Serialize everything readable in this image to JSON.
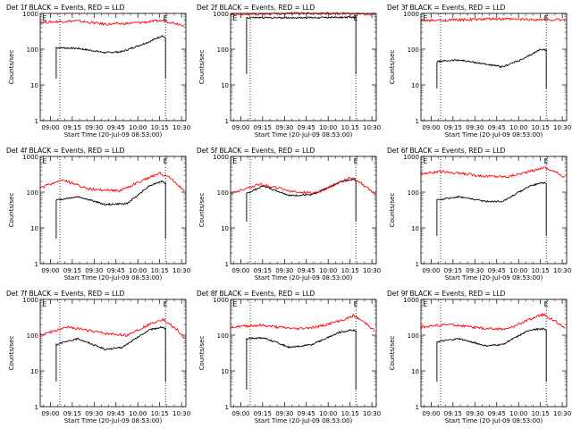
{
  "figure": {
    "background": "#ffffff",
    "event_color": "#000000",
    "lld_color": "#ff0000"
  },
  "chart_data": [
    {
      "type": "line",
      "title": "Det 1f BLACK = Events, RED = LLD",
      "xlabel": "Start Time (20-Jul-09 08:53:00)",
      "ylabel": "Counts/sec",
      "yscale": "log",
      "ylim": [
        1,
        1000
      ],
      "x_ticks": [
        "09:00",
        "09:15",
        "09:30",
        "09:45",
        "10:00",
        "10:15",
        "10:30"
      ],
      "y_ticks": [
        "1",
        "10",
        "100",
        "1000"
      ],
      "xlim_minutes": [
        0,
        100
      ],
      "marker_lines_minutes": [
        13.5,
        86
      ],
      "top_markers": [
        {
          "label": "E",
          "at_minutes": 3
        },
        {
          "label": "E",
          "at_minutes": 86
        }
      ],
      "series": [
        {
          "name": "Events",
          "color": "#000000",
          "kind": "events",
          "time_range_min": [
            11,
            86
          ],
          "edge_value": 15,
          "profile": [
            [
              0,
              110
            ],
            [
              0.2,
              105
            ],
            [
              0.45,
              80
            ],
            [
              0.6,
              85
            ],
            [
              0.85,
              160
            ],
            [
              0.97,
              240
            ],
            [
              1,
              200
            ]
          ]
        },
        {
          "name": "LLD",
          "color": "#ff0000",
          "kind": "lld",
          "time_range_min": [
            0,
            99
          ],
          "profile": [
            [
              0,
              560
            ],
            [
              0.25,
              620
            ],
            [
              0.45,
              500
            ],
            [
              0.6,
              520
            ],
            [
              0.85,
              630
            ],
            [
              1,
              470
            ]
          ]
        }
      ]
    },
    {
      "type": "line",
      "title": "Det 2f BLACK = Events, RED = LLD",
      "xlabel": "Start Time (20-Jul-09 08:53:00)",
      "ylabel": "Counts/sec",
      "yscale": "log",
      "ylim": [
        1,
        1000
      ],
      "x_ticks": [
        "09:00",
        "09:15",
        "09:30",
        "09:45",
        "10:00",
        "10:15",
        "10:30"
      ],
      "y_ticks": [
        "1",
        "10",
        "100",
        "1000"
      ],
      "xlim_minutes": [
        0,
        100
      ],
      "marker_lines_minutes": [
        13.5,
        86
      ],
      "top_markers": [
        {
          "label": "E",
          "at_minutes": 3
        },
        {
          "label": "E",
          "at_minutes": 86
        }
      ],
      "series": [
        {
          "name": "Events",
          "color": "#000000",
          "kind": "events",
          "time_range_min": [
            11,
            86
          ],
          "edge_value": 20,
          "profile": [
            [
              0,
              760
            ],
            [
              0.5,
              760
            ],
            [
              1,
              780
            ]
          ]
        },
        {
          "name": "LLD",
          "color": "#ff0000",
          "kind": "lld",
          "time_range_min": [
            0,
            99
          ],
          "profile": [
            [
              0,
              920
            ],
            [
              0.5,
              1020
            ],
            [
              1,
              960
            ]
          ]
        }
      ]
    },
    {
      "type": "line",
      "title": "Det 3f BLACK = Events, RED = LLD",
      "xlabel": "Start Time (20-Jul-09 08:53:00)",
      "ylabel": "Counts/sec",
      "yscale": "log",
      "ylim": [
        1,
        1000
      ],
      "x_ticks": [
        "09:00",
        "09:15",
        "09:30",
        "09:45",
        "10:00",
        "10:15",
        "10:30"
      ],
      "y_ticks": [
        "1",
        "10",
        "100",
        "1000"
      ],
      "xlim_minutes": [
        0,
        100
      ],
      "marker_lines_minutes": [
        13.5,
        86
      ],
      "top_markers": [
        {
          "label": "E",
          "at_minutes": 3
        },
        {
          "label": "E",
          "at_minutes": 86
        }
      ],
      "series": [
        {
          "name": "Events",
          "color": "#000000",
          "kind": "events",
          "time_range_min": [
            11,
            86
          ],
          "edge_value": 8,
          "profile": [
            [
              0,
              45
            ],
            [
              0.2,
              50
            ],
            [
              0.4,
              40
            ],
            [
              0.6,
              32
            ],
            [
              0.8,
              55
            ],
            [
              0.95,
              100
            ],
            [
              1,
              95
            ]
          ]
        },
        {
          "name": "LLD",
          "color": "#ff0000",
          "kind": "lld",
          "time_range_min": [
            0,
            99
          ],
          "profile": [
            [
              0,
              620
            ],
            [
              0.5,
              700
            ],
            [
              1,
              660
            ]
          ]
        }
      ]
    },
    {
      "type": "line",
      "title": "Det 4f BLACK = Events, RED = LLD",
      "xlabel": "Start Time (20-Jul-09 08:53:00)",
      "ylabel": "Counts/sec",
      "yscale": "log",
      "ylim": [
        1,
        1000
      ],
      "x_ticks": [
        "09:00",
        "09:15",
        "09:30",
        "09:45",
        "10:00",
        "10:15",
        "10:30"
      ],
      "y_ticks": [
        "1",
        "10",
        "100",
        "1000"
      ],
      "xlim_minutes": [
        0,
        100
      ],
      "marker_lines_minutes": [
        13.5,
        86
      ],
      "top_markers": [
        {
          "label": "E",
          "at_minutes": 3
        },
        {
          "label": "E",
          "at_minutes": 86
        }
      ],
      "series": [
        {
          "name": "Events",
          "color": "#000000",
          "kind": "events",
          "time_range_min": [
            11,
            86
          ],
          "edge_value": 5,
          "profile": [
            [
              0,
              60
            ],
            [
              0.2,
              75
            ],
            [
              0.45,
              45
            ],
            [
              0.65,
              48
            ],
            [
              0.85,
              150
            ],
            [
              0.96,
              200
            ],
            [
              1,
              180
            ]
          ]
        },
        {
          "name": "LLD",
          "color": "#ff0000",
          "kind": "lld",
          "time_range_min": [
            0,
            99
          ],
          "profile": [
            [
              0,
              130
            ],
            [
              0.15,
              220
            ],
            [
              0.35,
              120
            ],
            [
              0.55,
              110
            ],
            [
              0.75,
              250
            ],
            [
              0.83,
              340
            ],
            [
              0.9,
              250
            ],
            [
              1,
              110
            ]
          ]
        }
      ]
    },
    {
      "type": "line",
      "title": "Det 5f BLACK = Events, RED = LLD",
      "xlabel": "Start Time (20-Jul-09 08:53:00)",
      "ylabel": "Counts/sec",
      "yscale": "log",
      "ylim": [
        1,
        1000
      ],
      "x_ticks": [
        "09:00",
        "09:15",
        "09:30",
        "09:45",
        "10:00",
        "10:15",
        "10:30"
      ],
      "y_ticks": [
        "1",
        "10",
        "100",
        "1000"
      ],
      "xlim_minutes": [
        0,
        100
      ],
      "marker_lines_minutes": [
        13.5,
        86
      ],
      "top_markers": [
        {
          "label": "E",
          "at_minutes": 3
        },
        {
          "label": "E",
          "at_minutes": 86
        }
      ],
      "series": [
        {
          "name": "Events",
          "color": "#000000",
          "kind": "events",
          "time_range_min": [
            11,
            86
          ],
          "edge_value": 15,
          "profile": [
            [
              0,
              90
            ],
            [
              0.15,
              150
            ],
            [
              0.4,
              80
            ],
            [
              0.6,
              85
            ],
            [
              0.85,
              190
            ],
            [
              0.97,
              230
            ],
            [
              1,
              210
            ]
          ]
        },
        {
          "name": "LLD",
          "color": "#ff0000",
          "kind": "lld",
          "time_range_min": [
            0,
            99
          ],
          "profile": [
            [
              0,
              90
            ],
            [
              0.2,
              170
            ],
            [
              0.45,
              100
            ],
            [
              0.6,
              95
            ],
            [
              0.8,
              230
            ],
            [
              0.85,
              260
            ],
            [
              0.95,
              130
            ],
            [
              1,
              90
            ]
          ]
        }
      ]
    },
    {
      "type": "line",
      "title": "Det 6f BLACK = Events, RED = LLD",
      "xlabel": "Start Time (20-Jul-09 08:53:00)",
      "ylabel": "Counts/sec",
      "yscale": "log",
      "ylim": [
        1,
        1000
      ],
      "x_ticks": [
        "09:00",
        "09:15",
        "09:30",
        "09:45",
        "10:00",
        "10:15",
        "10:30"
      ],
      "y_ticks": [
        "1",
        "10",
        "100",
        "1000"
      ],
      "xlim_minutes": [
        0,
        100
      ],
      "marker_lines_minutes": [
        13.5,
        86
      ],
      "top_markers": [
        {
          "label": "E",
          "at_minutes": 3
        },
        {
          "label": "E",
          "at_minutes": 86
        }
      ],
      "series": [
        {
          "name": "Events",
          "color": "#000000",
          "kind": "events",
          "time_range_min": [
            11,
            86
          ],
          "edge_value": 6,
          "profile": [
            [
              0,
              60
            ],
            [
              0.2,
              75
            ],
            [
              0.45,
              55
            ],
            [
              0.6,
              55
            ],
            [
              0.85,
              150
            ],
            [
              0.97,
              185
            ],
            [
              1,
              180
            ]
          ]
        },
        {
          "name": "LLD",
          "color": "#ff0000",
          "kind": "lld",
          "time_range_min": [
            0,
            99
          ],
          "profile": [
            [
              0,
              330
            ],
            [
              0.15,
              380
            ],
            [
              0.45,
              280
            ],
            [
              0.6,
              270
            ],
            [
              0.8,
              420
            ],
            [
              0.85,
              500
            ],
            [
              0.95,
              340
            ],
            [
              1,
              260
            ]
          ]
        }
      ]
    },
    {
      "type": "line",
      "title": "Det 7f BLACK = Events, RED = LLD",
      "xlabel": "Start Time (20-Jul-09 08:53:00)",
      "ylabel": "Counts/sec",
      "yscale": "log",
      "ylim": [
        1,
        1000
      ],
      "x_ticks": [
        "09:00",
        "09:15",
        "09:30",
        "09:45",
        "10:00",
        "10:15",
        "10:30"
      ],
      "y_ticks": [
        "1",
        "10",
        "100",
        "1000"
      ],
      "xlim_minutes": [
        0,
        100
      ],
      "marker_lines_minutes": [
        13.5,
        86
      ],
      "top_markers": [
        {
          "label": "E",
          "at_minutes": 3
        },
        {
          "label": "E",
          "at_minutes": 86
        }
      ],
      "series": [
        {
          "name": "Events",
          "color": "#000000",
          "kind": "events",
          "time_range_min": [
            11,
            86
          ],
          "edge_value": 5,
          "profile": [
            [
              0,
              55
            ],
            [
              0.2,
              80
            ],
            [
              0.45,
              40
            ],
            [
              0.6,
              45
            ],
            [
              0.85,
              140
            ],
            [
              0.97,
              170
            ],
            [
              1,
              150
            ]
          ]
        },
        {
          "name": "LLD",
          "color": "#ff0000",
          "kind": "lld",
          "time_range_min": [
            0,
            99
          ],
          "profile": [
            [
              0,
              100
            ],
            [
              0.2,
              170
            ],
            [
              0.45,
              110
            ],
            [
              0.6,
              100
            ],
            [
              0.8,
              240
            ],
            [
              0.85,
              280
            ],
            [
              0.95,
              140
            ],
            [
              1,
              80
            ]
          ]
        }
      ]
    },
    {
      "type": "line",
      "title": "Det 8f BLACK = Events, RED = LLD",
      "xlabel": "Start Time (20-Jul-09 08:53:00)",
      "ylabel": "Counts/sec",
      "yscale": "log",
      "ylim": [
        1,
        1000
      ],
      "x_ticks": [
        "09:00",
        "09:15",
        "09:30",
        "09:45",
        "10:00",
        "10:15",
        "10:30"
      ],
      "y_ticks": [
        "1",
        "10",
        "100",
        "1000"
      ],
      "xlim_minutes": [
        0,
        100
      ],
      "marker_lines_minutes": [
        13.5,
        86
      ],
      "top_markers": [
        {
          "label": "E",
          "at_minutes": 3
        },
        {
          "label": "E",
          "at_minutes": 86
        }
      ],
      "series": [
        {
          "name": "Events",
          "color": "#000000",
          "kind": "events",
          "time_range_min": [
            11,
            86
          ],
          "edge_value": 3,
          "profile": [
            [
              0,
              80
            ],
            [
              0.15,
              85
            ],
            [
              0.4,
              45
            ],
            [
              0.6,
              55
            ],
            [
              0.85,
              120
            ],
            [
              0.97,
              140
            ],
            [
              1,
              130
            ]
          ]
        },
        {
          "name": "LLD",
          "color": "#ff0000",
          "kind": "lld",
          "time_range_min": [
            0,
            99
          ],
          "profile": [
            [
              0,
              170
            ],
            [
              0.2,
              190
            ],
            [
              0.45,
              150
            ],
            [
              0.6,
              170
            ],
            [
              0.8,
              280
            ],
            [
              0.85,
              360
            ],
            [
              0.95,
              200
            ],
            [
              1,
              130
            ]
          ]
        }
      ]
    },
    {
      "type": "line",
      "title": "Det 9f BLACK = Events, RED = LLD",
      "xlabel": "Start Time (20-Jul-09 08:53:00)",
      "ylabel": "Counts/sec",
      "yscale": "log",
      "ylim": [
        1,
        1000
      ],
      "x_ticks": [
        "09:00",
        "09:15",
        "09:30",
        "09:45",
        "10:00",
        "10:15",
        "10:30"
      ],
      "y_ticks": [
        "1",
        "10",
        "100",
        "1000"
      ],
      "xlim_minutes": [
        0,
        100
      ],
      "marker_lines_minutes": [
        13.5,
        86
      ],
      "top_markers": [
        {
          "label": "E",
          "at_minutes": 3
        },
        {
          "label": "E",
          "at_minutes": 86
        }
      ],
      "series": [
        {
          "name": "Events",
          "color": "#000000",
          "kind": "events",
          "time_range_min": [
            11,
            86
          ],
          "edge_value": 5,
          "profile": [
            [
              0,
              65
            ],
            [
              0.2,
              80
            ],
            [
              0.45,
              50
            ],
            [
              0.6,
              55
            ],
            [
              0.85,
              140
            ],
            [
              0.97,
              150
            ],
            [
              1,
              140
            ]
          ]
        },
        {
          "name": "LLD",
          "color": "#ff0000",
          "kind": "lld",
          "time_range_min": [
            0,
            99
          ],
          "profile": [
            [
              0,
              170
            ],
            [
              0.2,
              200
            ],
            [
              0.45,
              150
            ],
            [
              0.6,
              150
            ],
            [
              0.8,
              330
            ],
            [
              0.85,
              380
            ],
            [
              0.95,
              220
            ],
            [
              1,
              150
            ]
          ]
        }
      ]
    }
  ]
}
